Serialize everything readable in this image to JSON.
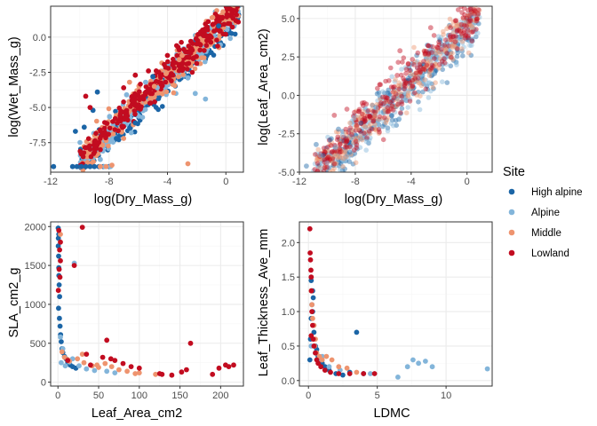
{
  "colors": {
    "High alpine": "#1B65A6",
    "Alpine": "#83B5DA",
    "Middle": "#EE946F",
    "Lowland": "#C20C20"
  },
  "legend": {
    "title": "Site",
    "items": [
      "High alpine",
      "Alpine",
      "Middle",
      "Lowland"
    ]
  },
  "chart_data": [
    {
      "id": "p1",
      "type": "scatter",
      "xlabel": "log(Dry_Mass_g)",
      "ylabel": "log(Wet_Mass_g)",
      "xlim": [
        -12,
        1.2
      ],
      "ylim": [
        -9.6,
        2.2
      ],
      "xticks": [
        -12,
        -8,
        -4,
        0
      ],
      "xtick_labels": [
        "-12",
        "-8",
        "-4",
        "0"
      ],
      "yticks": [
        0,
        -2.5,
        -5,
        -7.5
      ],
      "ytick_labels": [
        "0.0",
        "-2.5",
        "-5.0",
        "-7.5"
      ],
      "opacity": 1,
      "trend": {
        "slope": 1.0,
        "intercept": 1.1,
        "spread": 0.55,
        "xmin": -10,
        "xmax": 0.9
      },
      "series": [
        {
          "name": "High alpine",
          "x": [
            -11.8,
            -10.5,
            -10.2,
            -9.9,
            -9.6,
            -9.3,
            -9.0,
            -8.7,
            -8.4,
            -8.0,
            -10.3,
            -9.7,
            -7.5,
            -6.2,
            -9.1,
            -8.8,
            -5.0,
            -1.0,
            -0.5
          ],
          "y": [
            -9.2,
            -9.2,
            -9.2,
            -9.2,
            -9.2,
            -9.2,
            -9.2,
            -9.2,
            -9.2,
            -9.2,
            -6.7,
            -6.4,
            -7.2,
            -6.1,
            -5.2,
            -3.9,
            -2.8,
            -1.1,
            0.8
          ]
        },
        {
          "name": "Alpine",
          "x": [
            -8.6,
            -8.3,
            -7.9,
            -4.7,
            -2.6,
            -2.1,
            -1.4,
            -6.8,
            -5.5
          ],
          "y": [
            -8.7,
            -9.2,
            -9.2,
            -3.6,
            -2.9,
            -4.0,
            -4.4,
            -4.1,
            -3.2
          ]
        },
        {
          "name": "Middle",
          "x": [
            -8.6,
            -8.2,
            -7.8,
            -7.0,
            -6.6,
            -4.9,
            -4.1,
            -3.2,
            -0.9,
            -0.2,
            -2.6,
            -3.0
          ],
          "y": [
            -9.2,
            -9.2,
            -9.1,
            -7.2,
            -3.2,
            -3.5,
            -2.6,
            -1.6,
            1.4,
            1.8,
            -9.0,
            -1.3
          ]
        },
        {
          "name": "Lowland",
          "x": [
            -9.3,
            -8.6,
            -7.0,
            -6.2,
            -5.3,
            -4.6,
            -4.0,
            -3.2,
            -2.4,
            -1.6,
            -0.9,
            -0.4,
            0.1,
            0.7,
            -9.6,
            -1.0
          ],
          "y": [
            -5.0,
            -6.6,
            -3.6,
            -2.7,
            -2.4,
            -2.5,
            -1.3,
            -0.9,
            -0.3,
            0.5,
            0.9,
            1.4,
            1.6,
            1.9,
            -4.2,
            0.0
          ]
        }
      ]
    },
    {
      "id": "p2",
      "type": "scatter",
      "xlabel": "log(Dry_Mass_g)",
      "ylabel": "log(Leaf_Area_cm2)",
      "xlim": [
        -12,
        1.8
      ],
      "ylim": [
        -5,
        5.8
      ],
      "xticks": [
        -12,
        -8,
        -4,
        0
      ],
      "xtick_labels": [
        "-12",
        "-8",
        "-4",
        "0"
      ],
      "yticks": [
        5,
        2.5,
        0,
        -2.5,
        -5
      ],
      "ytick_labels": [
        "5.0",
        "2.5",
        "0.0",
        "-2.5",
        "-5.0"
      ],
      "opacity": 0.45,
      "trend": {
        "slope": 0.87,
        "intercept": 4.3,
        "spread": 0.75,
        "xmin": -11,
        "xmax": 0.9
      },
      "series": [
        {
          "name": "High alpine",
          "x": [
            -11.5,
            -10.8,
            -10.3,
            -9.8,
            -9.2,
            -8.4,
            -7.6,
            -5.4,
            -4.2
          ],
          "y": [
            -4.6,
            -3.2,
            -3.9,
            -2.9,
            -2.2,
            -3.7,
            -1.8,
            -1.3,
            1.1
          ]
        },
        {
          "name": "Alpine",
          "x": [
            -10.5,
            -10.0,
            -9.4,
            -8.9,
            -8.1,
            -7.2,
            -6.5
          ],
          "y": [
            -3.9,
            -4.4,
            -3.4,
            -2.6,
            -1.5,
            -3.0,
            -0.8
          ]
        },
        {
          "name": "Middle",
          "x": [
            -8.8,
            -7.8,
            -6.6,
            -5.2,
            -3.4,
            -2.2,
            -1.1,
            0.4
          ],
          "y": [
            -3.7,
            -2.2,
            -1.3,
            0.2,
            0.8,
            1.9,
            3.2,
            4.4
          ]
        },
        {
          "name": "Lowland",
          "x": [
            -9.5,
            -8.6,
            -7.5,
            -6.2,
            -5.0,
            -3.8,
            -3.0,
            -2.1,
            -1.2,
            -0.4,
            0.2,
            0.8,
            -4.8,
            -2.6
          ],
          "y": [
            -1.3,
            -0.9,
            -0.5,
            0.7,
            1.3,
            2.0,
            2.7,
            3.1,
            3.9,
            4.6,
            5.2,
            5.3,
            2.9,
            4.4
          ]
        }
      ]
    },
    {
      "id": "p3",
      "type": "scatter",
      "xlabel": "Leaf_Area_cm2",
      "ylabel": "SLA_cm2_g",
      "xlim": [
        -9,
        228
      ],
      "ylim": [
        -50,
        2060
      ],
      "xticks": [
        0,
        50,
        100,
        150,
        200
      ],
      "xtick_labels": [
        "0",
        "50",
        "100",
        "150",
        "200"
      ],
      "yticks": [
        0,
        500,
        1000,
        1500,
        2000
      ],
      "ytick_labels": [
        "0",
        "500",
        "1000",
        "1500",
        "2000"
      ],
      "opacity": 1,
      "series": [
        {
          "name": "High alpine",
          "x": [
            0.3,
            0.5,
            0.8,
            1.0,
            1.2,
            1.5,
            2.0,
            0.7,
            1.8,
            2.6,
            3.2,
            4.0,
            5.0,
            6.0,
            8.0,
            10.0,
            12.0,
            15.0,
            18.0,
            22.0,
            0.4,
            1.1
          ],
          "y": [
            1980,
            1850,
            1620,
            1470,
            1370,
            1250,
            1100,
            950,
            820,
            720,
            610,
            520,
            430,
            380,
            330,
            300,
            260,
            220,
            200,
            180,
            1750,
            1900
          ]
        },
        {
          "name": "Alpine",
          "x": [
            3.0,
            6.0,
            14.0,
            20.0,
            26.0,
            35.0,
            45.0,
            60.0,
            70.0,
            18.0,
            4.0,
            9.0
          ],
          "y": [
            580,
            430,
            260,
            1530,
            210,
            170,
            150,
            140,
            120,
            300,
            250,
            210
          ]
        },
        {
          "name": "Middle",
          "x": [
            3.0,
            8.0,
            14.0,
            24.0,
            32.0,
            42.0,
            50.0,
            58.0,
            66.0,
            75.0,
            85.0,
            100.0,
            120.0,
            95.0,
            48.0,
            30.0,
            12.0,
            5.0
          ],
          "y": [
            1900,
            320,
            270,
            300,
            250,
            210,
            190,
            240,
            200,
            160,
            140,
            120,
            100,
            110,
            220,
            360,
            290,
            390
          ]
        },
        {
          "name": "Lowland",
          "x": [
            1.0,
            2.0,
            3.0,
            0.5,
            30.0,
            20.0,
            12.0,
            40.0,
            55.0,
            60.0,
            65.0,
            70.0,
            80.0,
            90.0,
            100.0,
            125.0,
            128.0,
            140.0,
            152.0,
            158.0,
            163.0,
            190.0,
            198.0,
            206.0,
            210.0,
            216.0,
            3.0,
            2.5,
            35.0,
            1.5
          ],
          "y": [
            1950,
            1700,
            1560,
            1180,
            1990,
            1500,
            280,
            220,
            320,
            540,
            300,
            280,
            240,
            200,
            180,
            110,
            100,
            90,
            130,
            160,
            500,
            100,
            180,
            220,
            200,
            220,
            1800,
            1350,
            360,
            1450
          ]
        }
      ]
    },
    {
      "id": "p4",
      "type": "scatter",
      "xlabel": "LDMC",
      "ylabel": "Leaf_Thickness_Ave_mm",
      "xlim": [
        -0.66,
        13.35
      ],
      "ylim": [
        -0.08,
        2.3
      ],
      "xticks": [
        0,
        5,
        10
      ],
      "xtick_labels": [
        "0",
        "5",
        "10"
      ],
      "yticks": [
        0,
        0.5,
        1,
        1.5,
        2
      ],
      "ytick_labels": [
        "0.0",
        "0.5",
        "1.0",
        "1.5",
        "2.0"
      ],
      "opacity": 1,
      "series": [
        {
          "name": "High alpine",
          "x": [
            0.1,
            0.15,
            0.2,
            0.25,
            0.3,
            0.35,
            0.4,
            0.5,
            0.6,
            0.7,
            0.8,
            1.0,
            1.2,
            1.5,
            2.0,
            2.5,
            3.0,
            3.5,
            4.0,
            0.3,
            0.2
          ],
          "y": [
            0.3,
            0.6,
            0.9,
            1.1,
            1.3,
            1.2,
            0.7,
            0.5,
            0.45,
            0.35,
            0.3,
            0.25,
            0.2,
            0.15,
            0.1,
            0.08,
            0.12,
            0.7,
            0.1,
            1.0,
            1.45
          ]
        },
        {
          "name": "Alpine",
          "x": [
            0.2,
            0.5,
            0.9,
            1.5,
            2.3,
            3.0,
            4.5,
            6.5,
            7.2,
            7.6,
            8.0,
            8.5,
            9.0,
            13.0,
            0.4,
            1.0
          ],
          "y": [
            0.5,
            0.4,
            0.3,
            0.2,
            0.15,
            0.1,
            0.1,
            0.05,
            0.2,
            0.3,
            0.25,
            0.28,
            0.2,
            0.17,
            0.8,
            0.35
          ]
        },
        {
          "name": "Middle",
          "x": [
            0.2,
            0.3,
            0.4,
            0.5,
            0.6,
            0.8,
            1.0,
            1.3,
            1.7,
            2.2,
            2.8,
            3.5,
            0.25,
            0.45
          ],
          "y": [
            1.3,
            0.9,
            0.8,
            0.6,
            0.4,
            0.35,
            0.3,
            0.35,
            0.3,
            0.2,
            0.18,
            0.12,
            1.1,
            0.5
          ]
        },
        {
          "name": "Lowland",
          "x": [
            0.1,
            0.12,
            0.15,
            0.18,
            0.2,
            0.22,
            0.25,
            0.3,
            0.35,
            0.4,
            0.5,
            0.6,
            0.7,
            0.9,
            1.2,
            1.6,
            2.2,
            3.0,
            4.0,
            4.8,
            0.2
          ],
          "y": [
            2.2,
            1.85,
            1.75,
            1.6,
            1.5,
            1.3,
            1.0,
            0.8,
            0.6,
            0.5,
            0.4,
            0.3,
            0.25,
            0.2,
            0.15,
            0.12,
            0.1,
            0.1,
            0.1,
            0.1,
            0.65
          ]
        }
      ]
    }
  ]
}
